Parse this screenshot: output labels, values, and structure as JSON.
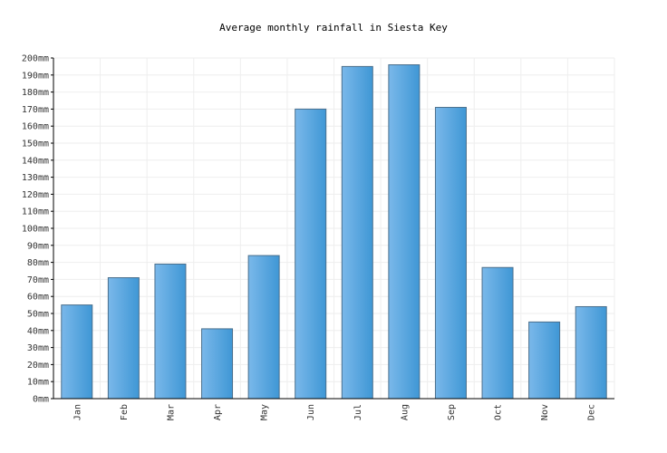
{
  "chart_data": {
    "type": "bar",
    "title": "Average monthly rainfall in Siesta Key",
    "xlabel": "",
    "ylabel": "",
    "categories": [
      "Jan",
      "Feb",
      "Mar",
      "Apr",
      "May",
      "Jun",
      "Jul",
      "Aug",
      "Sep",
      "Oct",
      "Nov",
      "Dec"
    ],
    "values": [
      55,
      71,
      79,
      41,
      84,
      170,
      195,
      196,
      171,
      77,
      45,
      54
    ],
    "ylim": [
      0,
      200
    ],
    "ytick_step": 10,
    "ytick_labels": [
      "0mm",
      "10mm",
      "20mm",
      "30mm",
      "40mm",
      "50mm",
      "60mm",
      "70mm",
      "80mm",
      "90mm",
      "100mm",
      "110mm",
      "120mm",
      "130mm",
      "140mm",
      "150mm",
      "160mm",
      "170mm",
      "180mm",
      "190mm",
      "200mm"
    ],
    "grid": true,
    "legend": "none",
    "colors": {
      "bar_light": "#7ab8ea",
      "bar_dark": "#3f97d5",
      "bar_border": "#4a6f8c",
      "grid": "#eeeeee",
      "axis": "#000000"
    }
  }
}
